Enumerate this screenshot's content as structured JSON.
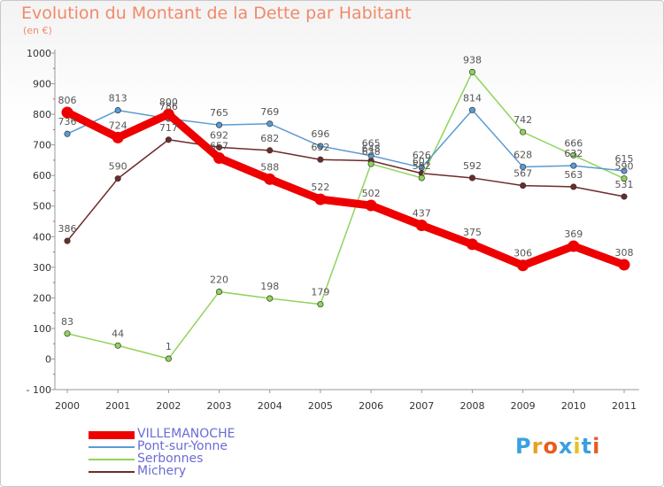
{
  "title": "Evolution du Montant de la Dette par Habitant",
  "subtitle": "(en €)",
  "logo": {
    "text": "Proxiti",
    "colors": [
      "#3aa0e0",
      "#e8a020",
      "#e85c20",
      "#3aa0e0",
      "#e8c020",
      "#3aa0e0",
      "#e85c20"
    ]
  },
  "chart_data": {
    "type": "line",
    "title": "Evolution du Montant de la Dette par Habitant",
    "subtitle": "(en €)",
    "x": [
      "2000",
      "2001",
      "2002",
      "2003",
      "2004",
      "2005",
      "2006",
      "2007",
      "2008",
      "2009",
      "2010",
      "2011"
    ],
    "ylim": [
      -100,
      1000
    ],
    "yticks": [
      -100,
      0,
      100,
      200,
      300,
      400,
      500,
      600,
      700,
      800,
      900,
      1000
    ],
    "grid": false,
    "legend_position": "bottom-left",
    "series": [
      {
        "name": "VILLEMANOCHE",
        "color": "#ee0000",
        "values": [
          806,
          724,
          800,
          657,
          588,
          522,
          502,
          437,
          375,
          306,
          369,
          308
        ]
      },
      {
        "name": "Pont-sur-Yonne",
        "color": "#5a9bd4",
        "values": [
          736,
          813,
          786,
          765,
          769,
          696,
          665,
          626,
          814,
          628,
          632,
          615
        ]
      },
      {
        "name": "Serbonnes",
        "color": "#8fd45a",
        "values": [
          83,
          44,
          1,
          220,
          198,
          179,
          638,
          592,
          938,
          742,
          666,
          590
        ]
      },
      {
        "name": "Michery",
        "color": "#6e2a2a",
        "values": [
          386,
          590,
          717,
          692,
          682,
          652,
          648,
          607,
          592,
          567,
          563,
          531
        ]
      }
    ]
  }
}
